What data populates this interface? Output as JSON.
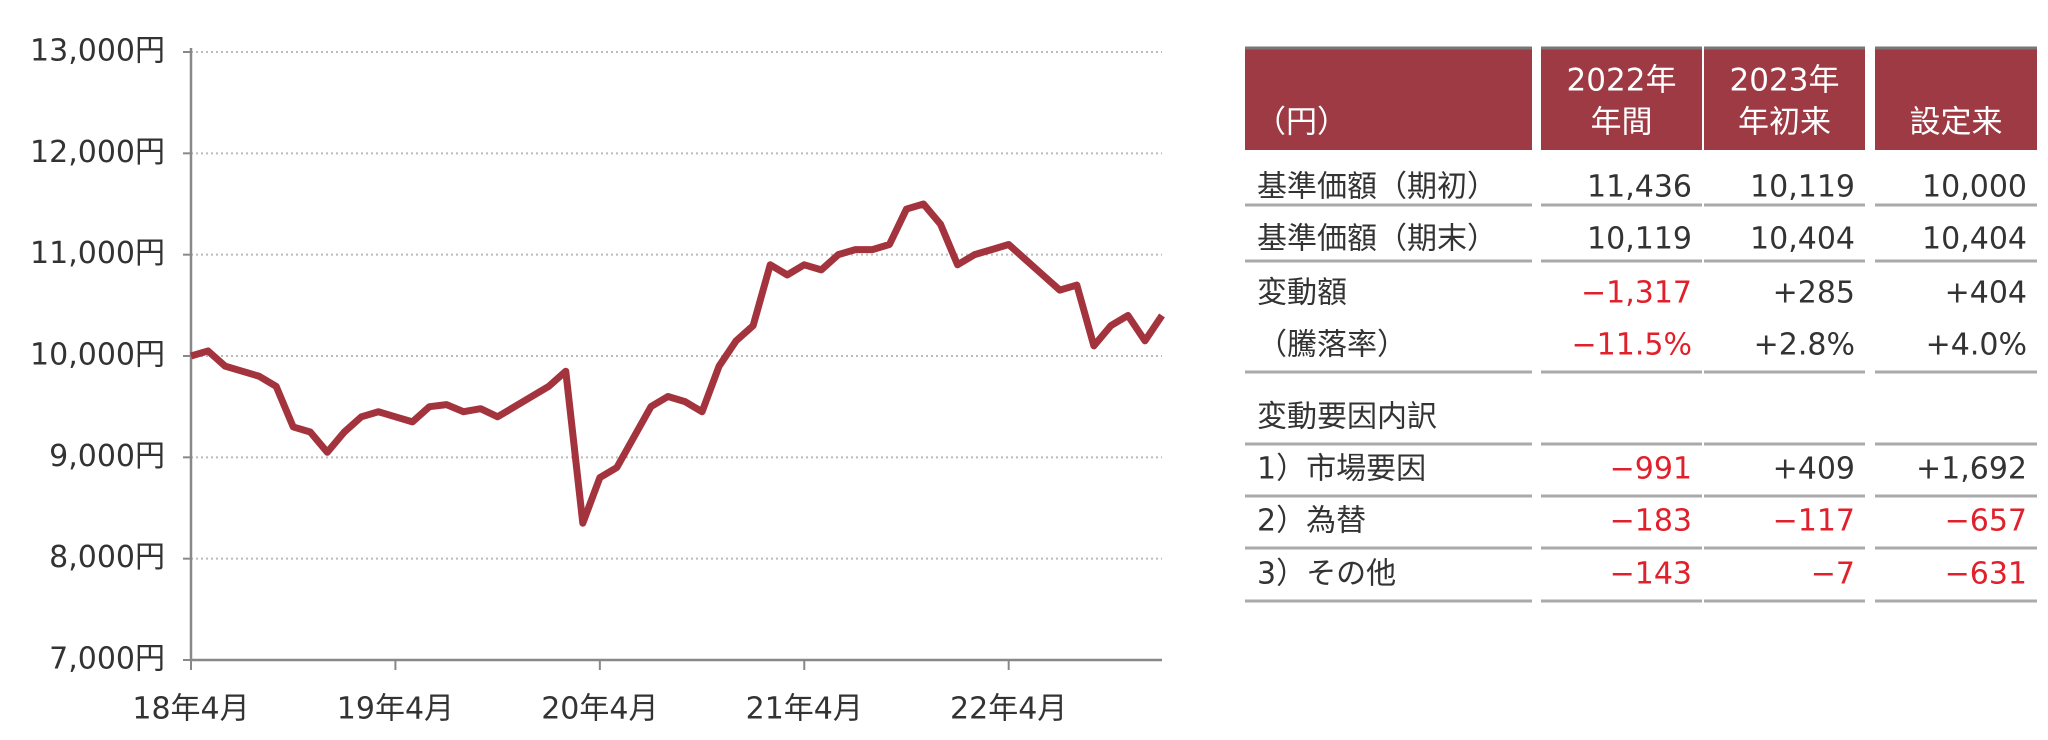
{
  "chart_data": {
    "type": "line",
    "x": [
      "2018-04",
      "2018-05",
      "2018-06",
      "2018-07",
      "2018-08",
      "2018-09",
      "2018-10",
      "2018-11",
      "2018-12",
      "2019-01",
      "2019-02",
      "2019-03",
      "2019-04",
      "2019-05",
      "2019-06",
      "2019-07",
      "2019-08",
      "2019-09",
      "2019-10",
      "2019-11",
      "2019-12",
      "2020-01",
      "2020-02",
      "2020-03",
      "2020-04",
      "2020-05",
      "2020-06",
      "2020-07",
      "2020-08",
      "2020-09",
      "2020-10",
      "2020-11",
      "2020-12",
      "2021-01",
      "2021-02",
      "2021-03",
      "2021-04",
      "2021-05",
      "2021-06",
      "2021-07",
      "2021-08",
      "2021-09",
      "2021-10",
      "2021-11",
      "2021-12",
      "2022-01",
      "2022-02",
      "2022-03",
      "2022-04",
      "2022-05",
      "2022-06",
      "2022-07",
      "2022-08",
      "2022-09",
      "2022-10",
      "2022-11",
      "2022-12",
      "2023-01"
    ],
    "series": [
      {
        "color": "#a3343e",
        "values": [
          10000,
          10050,
          9900,
          9850,
          9800,
          9700,
          9300,
          9250,
          9050,
          9250,
          9400,
          9450,
          9400,
          9350,
          9500,
          9520,
          9450,
          9480,
          9400,
          9500,
          9600,
          9700,
          9850,
          8350,
          8800,
          8900,
          9200,
          9500,
          9600,
          9550,
          9450,
          9900,
          10150,
          10300,
          10900,
          10800,
          10900,
          10850,
          11000,
          11050,
          11050,
          11100,
          11450,
          11500,
          11300,
          10900,
          11000,
          11050,
          11100,
          10950,
          10800,
          10650,
          10700,
          10100,
          10300,
          10400,
          10150,
          10400
        ]
      }
    ],
    "xlim": [
      "2018-04",
      "2023-01"
    ],
    "xticks": [
      {
        "value": "2018-04",
        "label": "18年4月"
      },
      {
        "value": "2019-04",
        "label": "19年4月"
      },
      {
        "value": "2020-04",
        "label": "20年4月"
      },
      {
        "value": "2021-04",
        "label": "21年4月"
      },
      {
        "value": "2022-04",
        "label": "22年4月"
      }
    ],
    "ylim": [
      7000,
      13000
    ],
    "yticks": [
      {
        "value": 7000,
        "label": "7,000円"
      },
      {
        "value": 8000,
        "label": "8,000円"
      },
      {
        "value": 9000,
        "label": "9,000円"
      },
      {
        "value": 10000,
        "label": "10,000円"
      },
      {
        "value": 11000,
        "label": "11,000円"
      },
      {
        "value": 12000,
        "label": "12,000円"
      },
      {
        "value": 13000,
        "label": "13,000円"
      }
    ],
    "grid": true
  },
  "table": {
    "header": [
      [
        "（円）"
      ],
      [
        "2022年",
        "年間"
      ],
      [
        "2023年",
        "年初来"
      ],
      [
        "設定来"
      ]
    ],
    "rows": [
      [
        "基準価額（期初）",
        "11,436",
        "10,119",
        "10,000"
      ],
      [
        "基準価額（期末）",
        "10,119",
        "10,404",
        "10,404"
      ],
      [
        "変動額",
        "−1,317",
        "+285",
        "+404"
      ],
      [
        "（騰落率）",
        "−11.5%",
        "+2.8%",
        "+4.0%"
      ]
    ],
    "section": "変動要因内訳",
    "factor_rows": [
      [
        "1）市場要因",
        "−991",
        "+409",
        "+1,692"
      ],
      [
        "2）為替",
        "−183",
        "−117",
        "−657"
      ],
      [
        "3）その他",
        "−143",
        "−7",
        "−631"
      ]
    ]
  }
}
